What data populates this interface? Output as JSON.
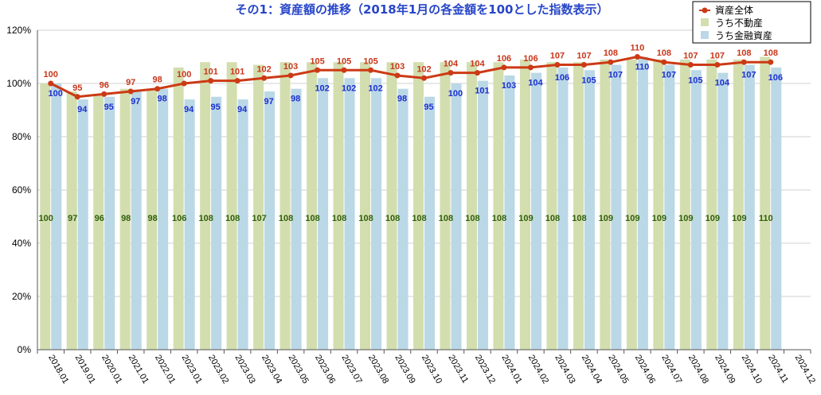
{
  "chart_data": {
    "type": "bar",
    "title": "その1：資産額の推移（2018年1月の各金額を100とした指数表示）",
    "categories": [
      "2018.01",
      "2019.01",
      "2020.01",
      "2021.01",
      "2022.01",
      "2023.01",
      "2023.02",
      "2023.03",
      "2023.04",
      "2023.05",
      "2023.06",
      "2023.07",
      "2023.08",
      "2023.09",
      "2023.10",
      "2023.11",
      "2023.12",
      "2024.01",
      "2024.02",
      "2024.03",
      "2024.04",
      "2024.05",
      "2024.06",
      "2024.07",
      "2024.08",
      "2024.09",
      "2024.10",
      "2024.11",
      "2024.12"
    ],
    "ylim": [
      0,
      120
    ],
    "yticks": [
      "0%",
      "20%",
      "40%",
      "60%",
      "80%",
      "100%",
      "120%"
    ],
    "ytick_values": [
      0,
      20,
      40,
      60,
      80,
      100,
      120
    ],
    "grid": true,
    "legend_position": "top-right",
    "series": [
      {
        "name": "資産全体",
        "type": "line",
        "color": "#cc3a14",
        "values": [
          100,
          95,
          96,
          97,
          98,
          100,
          101,
          101,
          102,
          103,
          105,
          105,
          105,
          103,
          102,
          104,
          104,
          106,
          106,
          107,
          107,
          108,
          110,
          108,
          107,
          107,
          108,
          108,
          null
        ]
      },
      {
        "name": "うち不動産",
        "type": "bar",
        "color": "#d3deaf",
        "values": [
          100,
          97,
          96,
          98,
          98,
          106,
          108,
          108,
          107,
          108,
          108,
          108,
          108,
          108,
          108,
          108,
          108,
          108,
          109,
          108,
          108,
          109,
          109,
          109,
          109,
          109,
          109,
          110,
          null
        ]
      },
      {
        "name": "うち金融資産",
        "type": "bar",
        "color": "#bad8e6",
        "values": [
          100,
          94,
          95,
          97,
          98,
          94,
          95,
          94,
          97,
          98,
          102,
          102,
          102,
          98,
          95,
          100,
          101,
          103,
          104,
          106,
          105,
          107,
          110,
          107,
          105,
          104,
          107,
          106,
          null
        ]
      }
    ]
  }
}
